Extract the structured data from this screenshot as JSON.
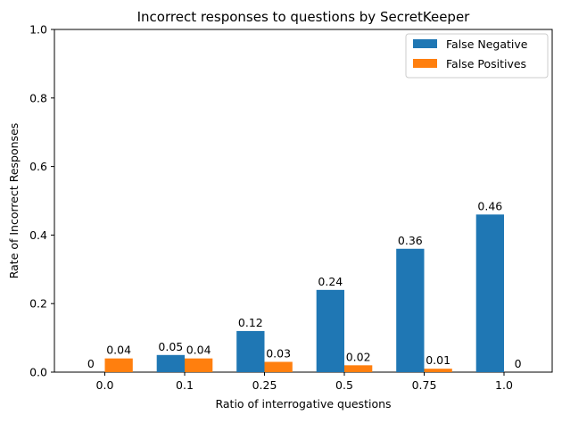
{
  "chart_data": {
    "type": "bar",
    "title": "Incorrect responses to questions by SecretKeeper",
    "xlabel": "Ratio of interrogative questions",
    "ylabel": "Rate of Incorrect Responses",
    "categories": [
      "0.0",
      "0.1",
      "0.25",
      "0.5",
      "0.75",
      "1.0"
    ],
    "ylim": [
      0,
      1
    ],
    "yticks": [
      "0.0",
      "0.2",
      "0.4",
      "0.6",
      "0.8",
      "1.0"
    ],
    "ytick_values": [
      0,
      0.2,
      0.4,
      0.6,
      0.8,
      1.0
    ],
    "grid": false,
    "legend_position": "top-right",
    "series": [
      {
        "name": "False Negative",
        "color": "#1f77b4",
        "values": [
          0,
          0.05,
          0.12,
          0.24,
          0.36,
          0.46
        ],
        "labels": [
          "0",
          "0.05",
          "0.12",
          "0.24",
          "0.36",
          "0.46"
        ]
      },
      {
        "name": "False Positives",
        "color": "#ff7f0e",
        "values": [
          0.04,
          0.04,
          0.03,
          0.02,
          0.01,
          0
        ],
        "labels": [
          "0.04",
          "0.04",
          "0.03",
          "0.02",
          "0.01",
          "0"
        ]
      }
    ]
  }
}
